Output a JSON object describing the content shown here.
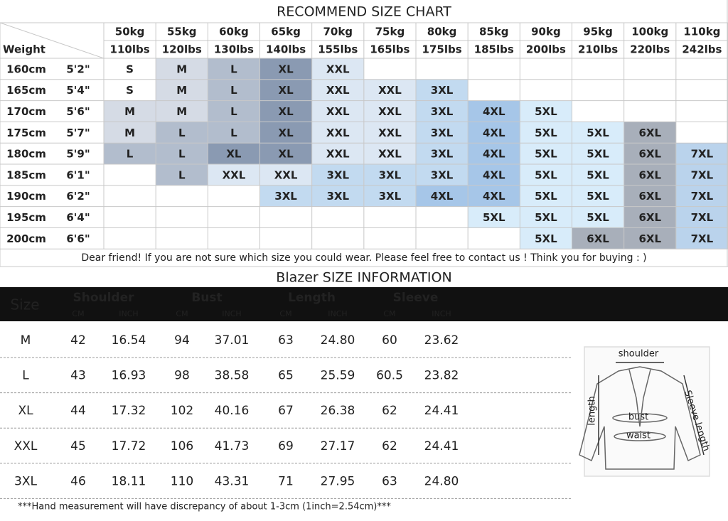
{
  "size_chart": {
    "title": "RECOMMEND SIZE CHART",
    "weight_label": "Weight",
    "weights": [
      {
        "kg": "50kg",
        "lbs": "110lbs"
      },
      {
        "kg": "55kg",
        "lbs": "120lbs"
      },
      {
        "kg": "60kg",
        "lbs": "130lbs"
      },
      {
        "kg": "65kg",
        "lbs": "140lbs"
      },
      {
        "kg": "70kg",
        "lbs": "155lbs"
      },
      {
        "kg": "75kg",
        "lbs": "165lbs"
      },
      {
        "kg": "80kg",
        "lbs": "175lbs"
      },
      {
        "kg": "85kg",
        "lbs": "185lbs"
      },
      {
        "kg": "90kg",
        "lbs": "200lbs"
      },
      {
        "kg": "95kg",
        "lbs": "210lbs"
      },
      {
        "kg": "100kg",
        "lbs": "220lbs"
      },
      {
        "kg": "110kg",
        "lbs": "242lbs"
      }
    ],
    "rows": [
      {
        "height_cm": "160cm",
        "height_ft": "5'2\"",
        "sizes": [
          "S",
          "M",
          "L",
          "XL",
          "XXL",
          null,
          null,
          null,
          null,
          null,
          null,
          null
        ]
      },
      {
        "height_cm": "165cm",
        "height_ft": "5'4\"",
        "sizes": [
          "S",
          "M",
          "L",
          "XL",
          "XXL",
          "XXL",
          "3XL",
          null,
          null,
          null,
          null,
          null
        ]
      },
      {
        "height_cm": "170cm",
        "height_ft": "5'6\"",
        "sizes": [
          "M",
          "M",
          "L",
          "XL",
          "XXL",
          "XXL",
          "3XL",
          "4XL",
          "5XL",
          null,
          null,
          null
        ]
      },
      {
        "height_cm": "175cm",
        "height_ft": "5'7\"",
        "sizes": [
          "M",
          "L",
          "L",
          "XL",
          "XXL",
          "XXL",
          "3XL",
          "4XL",
          "5XL",
          "5XL",
          "6XL",
          null
        ]
      },
      {
        "height_cm": "180cm",
        "height_ft": "5'9\"",
        "sizes": [
          "L",
          "L",
          "XL",
          "XL",
          "XXL",
          "XXL",
          "3XL",
          "4XL",
          "5XL",
          "5XL",
          "6XL",
          "7XL"
        ]
      },
      {
        "height_cm": "185cm",
        "height_ft": "6'1\"",
        "sizes": [
          null,
          "L",
          "XXL",
          "XXL",
          "3XL",
          "3XL",
          "3XL",
          "4XL",
          "5XL",
          "5XL",
          "6XL",
          "7XL"
        ]
      },
      {
        "height_cm": "190cm",
        "height_ft": "6'2\"",
        "sizes": [
          null,
          null,
          null,
          "3XL",
          "3XL",
          "3XL",
          "4XL",
          "4XL",
          "5XL",
          "5XL",
          "6XL",
          "7XL"
        ]
      },
      {
        "height_cm": "195cm",
        "height_ft": "6'4\"",
        "sizes": [
          null,
          null,
          null,
          null,
          null,
          null,
          null,
          "5XL",
          "5XL",
          "5XL",
          "6XL",
          "7XL"
        ]
      },
      {
        "height_cm": "200cm",
        "height_ft": "6'6\"",
        "sizes": [
          null,
          null,
          null,
          null,
          null,
          null,
          null,
          null,
          "5XL",
          "6XL",
          "6XL",
          "7XL"
        ]
      }
    ],
    "note": "Dear friend! If you are not sure which size you could wear. Please feel free to contact us ! Think you for buying  : )"
  },
  "blazer": {
    "title": "Blazer SIZE INFORMATION",
    "size_header": "Size",
    "groups": [
      {
        "name": "Shoulder",
        "units": [
          "CM",
          "INCH"
        ]
      },
      {
        "name": "Bust",
        "units": [
          "CM",
          "INCH"
        ]
      },
      {
        "name": "Length",
        "units": [
          "CM",
          "INCH"
        ]
      },
      {
        "name": "Sleeve",
        "units": [
          "CM",
          "INCH"
        ]
      }
    ],
    "rows": [
      [
        "M",
        "42",
        "16.54",
        "94",
        "37.01",
        "63",
        "24.80",
        "60",
        "23.62"
      ],
      [
        "L",
        "43",
        "16.93",
        "98",
        "38.58",
        "65",
        "25.59",
        "60.5",
        "23.82"
      ],
      [
        "XL",
        "44",
        "17.32",
        "102",
        "40.16",
        "67",
        "26.38",
        "62",
        "24.41"
      ],
      [
        "XXL",
        "45",
        "17.72",
        "106",
        "41.73",
        "69",
        "27.17",
        "62",
        "24.41"
      ],
      [
        "3XL",
        "46",
        "18.11",
        "110",
        "43.31",
        "71",
        "27.95",
        "63",
        "24.80"
      ]
    ],
    "footnote": "***Hand measurement will have discrepancy of about 1-3cm (1inch=2.54cm)***"
  },
  "diagram": {
    "shoulder": "shoulder",
    "length": "length",
    "bust": "bust",
    "waist": "waist",
    "sleeve": "Sleeve length"
  }
}
